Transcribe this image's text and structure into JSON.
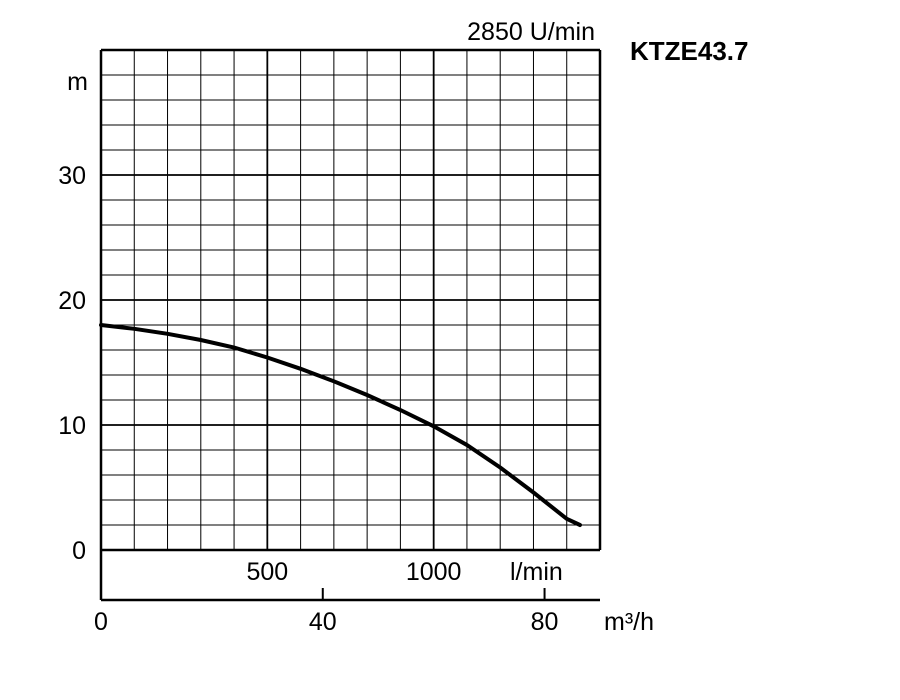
{
  "chart_data": {
    "type": "line",
    "title": "KTZE43.7",
    "subtitle": "2850 U/min",
    "ylabel": "m",
    "xlabel_flow_lmin": "l/min",
    "xlabel_flow_m3h": "m³/h",
    "xlim_lmin": [
      0,
      1500
    ],
    "ylim": [
      0,
      40
    ],
    "grid": true,
    "y_ticks": [
      "0",
      "10",
      "20",
      "30"
    ],
    "x_ticks_lmin": [
      "500",
      "1000"
    ],
    "x_ticks_m3h": [
      "0",
      "40",
      "80"
    ],
    "series": [
      {
        "x": [
          0,
          100,
          200,
          300,
          400,
          500,
          600,
          700,
          800,
          900,
          1000,
          1100,
          1200,
          1300,
          1400,
          1440
        ],
        "y": [
          18,
          17.7,
          17.3,
          16.8,
          16.2,
          15.4,
          14.5,
          13.5,
          12.4,
          11.2,
          9.9,
          8.4,
          6.6,
          4.6,
          2.5,
          2
        ]
      }
    ]
  }
}
